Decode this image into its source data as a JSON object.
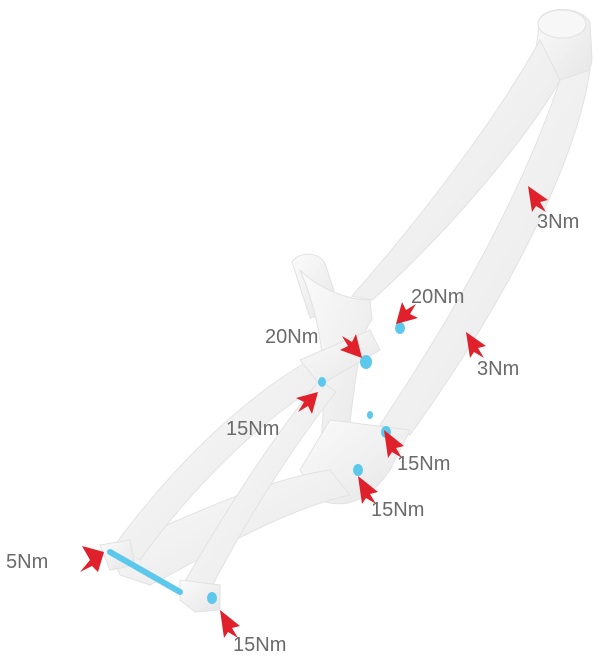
{
  "diagram": {
    "colors": {
      "frame": "#f1f1f1",
      "frame_shade": "#d9d9d9",
      "hardware": "#5cc8ec",
      "arrow": "#e0202a",
      "label": "#6a6a6a"
    },
    "torque_labels": [
      {
        "id": "top-tube-upper",
        "text": "3Nm",
        "point_to": "cable port on down tube, upper"
      },
      {
        "id": "top-link-rear",
        "text": "20Nm",
        "point_to": "rocker link pivot bolt"
      },
      {
        "id": "top-link-front",
        "text": "20Nm",
        "point_to": "rocker link main bolt"
      },
      {
        "id": "down-tube-lower",
        "text": "3Nm",
        "point_to": "cable port on down tube, lower"
      },
      {
        "id": "seatstay-pivot",
        "text": "15Nm",
        "point_to": "seatstay link bolt"
      },
      {
        "id": "main-pivot-upper",
        "text": "15Nm",
        "point_to": "main pivot bolt"
      },
      {
        "id": "main-pivot-lower",
        "text": "15Nm",
        "point_to": "lower pivot bolt"
      },
      {
        "id": "rear-axle",
        "text": "5Nm",
        "point_to": "rear thru-axle"
      },
      {
        "id": "dropout-pivot",
        "text": "15Nm",
        "point_to": "dropout pivot bolt"
      }
    ]
  }
}
